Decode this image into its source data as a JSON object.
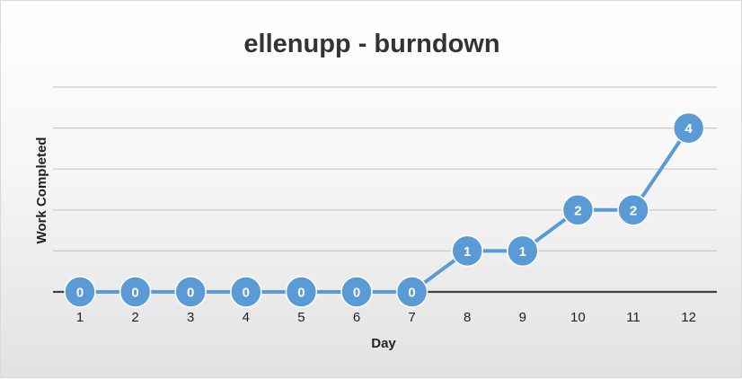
{
  "chart_data": {
    "type": "line",
    "title": "ellenupp - burndown",
    "xlabel": "Day",
    "ylabel": "Work Completed",
    "categories": [
      "1",
      "2",
      "3",
      "4",
      "5",
      "6",
      "7",
      "8",
      "9",
      "10",
      "11",
      "12"
    ],
    "series": [
      {
        "values": [
          0,
          0,
          0,
          0,
          0,
          0,
          0,
          1,
          1,
          2,
          2,
          4
        ]
      }
    ],
    "data_labels": [
      "0",
      "0",
      "0",
      "0",
      "0",
      "0",
      "0",
      "1",
      "1",
      "2",
      "2",
      "4"
    ],
    "ylim": [
      0,
      5
    ],
    "y_gridlines": [
      1,
      2,
      3,
      4,
      5
    ],
    "grid": true,
    "legend": "none",
    "colors": {
      "series": "#5b9bd5",
      "marker_stroke": "#ffffff",
      "gridline": "#c8c8c8",
      "axis": "#404040",
      "title": "#333333"
    }
  }
}
